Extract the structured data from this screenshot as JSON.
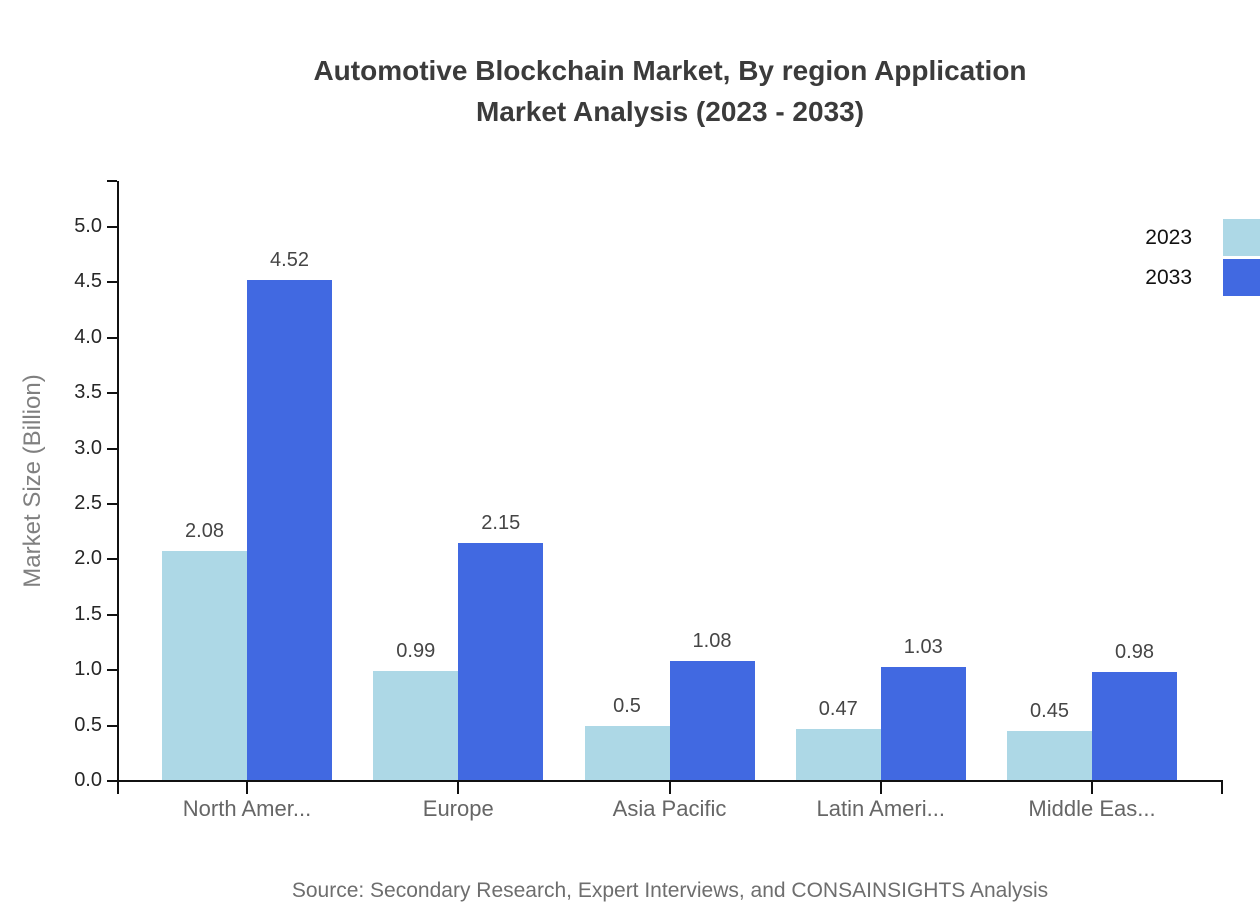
{
  "title": {
    "line1": "Automotive Blockchain Market, By region Application",
    "line2": "Market Analysis (2023 - 2033)"
  },
  "source": "Source: Secondary Research, Expert Interviews, and CONSAINSIGHTS Analysis",
  "legend": {
    "items": [
      {
        "label": "2023",
        "color": "#ADD8E6"
      },
      {
        "label": "2033",
        "color": "#4169E1"
      }
    ]
  },
  "chart_data": {
    "type": "bar",
    "title": "Automotive Blockchain Market, By region Application Market Analysis (2023 - 2033)",
    "categories": [
      "North Amer...",
      "Europe",
      "Asia Pacific",
      "Latin Ameri...",
      "Middle Eas..."
    ],
    "series": [
      {
        "name": "2023",
        "color": "#ADD8E6",
        "values": [
          2.08,
          0.99,
          0.5,
          0.47,
          0.45
        ]
      },
      {
        "name": "2033",
        "color": "#4169E1",
        "values": [
          4.52,
          2.15,
          1.08,
          1.03,
          0.98
        ]
      }
    ],
    "xlabel": "",
    "ylabel": "Market Size (Billion)",
    "ylim": [
      0,
      5.0
    ],
    "ytick_step": 0.5,
    "yticks": [
      "0.0",
      "0.5",
      "1.0",
      "1.5",
      "2.0",
      "2.5",
      "3.0",
      "3.5",
      "4.0",
      "4.5",
      "5.0"
    ],
    "grid": false,
    "legend_position": "top-right"
  }
}
